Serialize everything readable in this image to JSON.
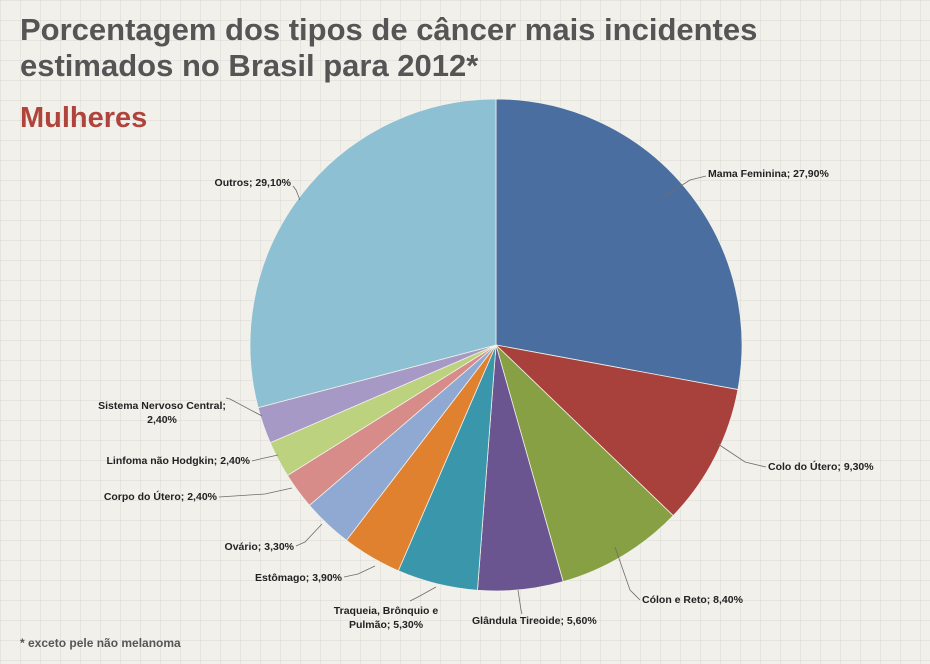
{
  "title": "Porcentagem dos tipos de câncer mais incidentes estimados no Brasil para 2012*",
  "subtitle": "Mulheres",
  "footnote": "* exceto pele não melanoma",
  "chart_data": {
    "type": "pie",
    "title": "Porcentagem dos tipos de câncer mais incidentes estimados no Brasil para 2012*",
    "subtitle": "Mulheres",
    "start": "12 o'clock",
    "direction": "clockwise",
    "slices": [
      {
        "name": "Mama Feminina",
        "value": 27.9,
        "label_lines": [
          "Mama Feminina; 27,90%"
        ],
        "color": "#4a6e9f"
      },
      {
        "name": "Colo do Útero",
        "value": 9.3,
        "label_lines": [
          "Colo do Útero; 9,30%"
        ],
        "color": "#a8403c"
      },
      {
        "name": "Cólon e Reto",
        "value": 8.4,
        "label_lines": [
          "Cólon e Reto; 8,40%"
        ],
        "color": "#86a043"
      },
      {
        "name": "Glândula Tireoide",
        "value": 5.6,
        "label_lines": [
          "Glândula Tireoide; 5,60%"
        ],
        "color": "#6b5591"
      },
      {
        "name": "Traqueia, Brônquio e Pulmão",
        "value": 5.3,
        "label_lines": [
          "Traqueia, Brônquio e",
          "Pulmão; 5,30%"
        ],
        "color": "#3a97ab"
      },
      {
        "name": "Estômago",
        "value": 3.9,
        "label_lines": [
          "Estômago; 3,90%"
        ],
        "color": "#e0812f"
      },
      {
        "name": "Ovário",
        "value": 3.3,
        "label_lines": [
          "Ovário; 3,30%"
        ],
        "color": "#90a9d3"
      },
      {
        "name": "Corpo do Útero",
        "value": 2.4,
        "label_lines": [
          "Corpo do Útero; 2,40%"
        ],
        "color": "#d88c8a"
      },
      {
        "name": "Linfoma não Hodgkin",
        "value": 2.4,
        "label_lines": [
          "Linfoma não Hodgkin; 2,40%"
        ],
        "color": "#bcd27f"
      },
      {
        "name": "Sistema Nervoso Central",
        "value": 2.4,
        "label_lines": [
          "Sistema Nervoso Central;",
          "2,40%"
        ],
        "color": "#a699c5"
      },
      {
        "name": "Outros",
        "value": 29.1,
        "label_lines": [
          "Outros; 29,10%"
        ],
        "color": "#8ec0d3"
      }
    ]
  }
}
